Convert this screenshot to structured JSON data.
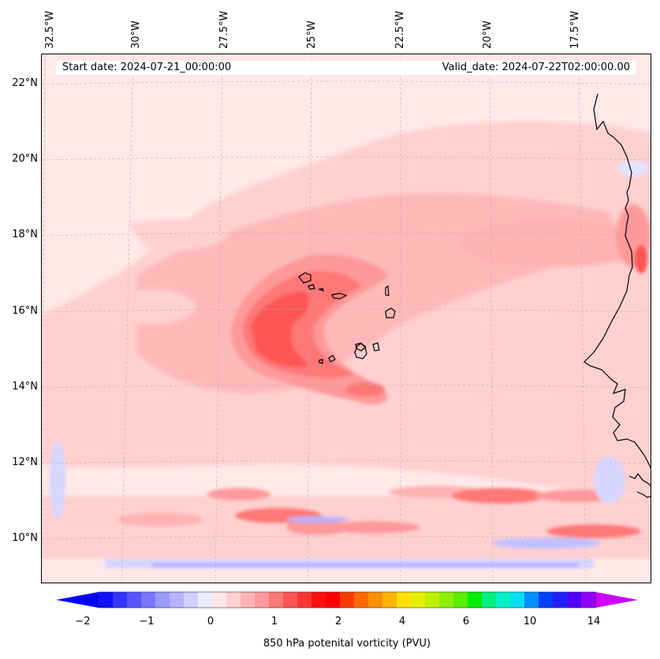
{
  "map": {
    "start_date": "Start date: 2024-07-21_00:00:00",
    "valid_date": "Valid_date: 2024-07-22T02:00:00.00",
    "lon_labels": [
      "32.5°W",
      "30°W",
      "27.5°W",
      "25°W",
      "22.5°W",
      "20°W",
      "17.5°W"
    ],
    "lat_labels": [
      "22°N",
      "20°N",
      "18°N",
      "16°N",
      "14°N",
      "12°N",
      "10°N"
    ],
    "colorbar": {
      "label": "850 hPa potenital vorticity (PVU)",
      "ticks": [
        "−2",
        "−1",
        "0",
        "1",
        "2",
        "4",
        "6",
        "10",
        "14"
      ],
      "colors": [
        "#1010ff",
        "#3535ff",
        "#5555ff",
        "#7777ff",
        "#9999ff",
        "#b3b3ff",
        "#d0d0ff",
        "#ececff",
        "#ffe8e8",
        "#ffd0d0",
        "#ffb3b3",
        "#ff9999",
        "#ff7777",
        "#ff5555",
        "#ff3535",
        "#ff1010",
        "#ff0000",
        "#ff3a00",
        "#ff6a00",
        "#ff9000",
        "#ffb400",
        "#ffe000",
        "#e5f000",
        "#c0f000",
        "#8cf000",
        "#5aee00",
        "#00ee00",
        "#00f080",
        "#00f0c8",
        "#00e0f0",
        "#0090ff",
        "#0040ff",
        "#2020ff",
        "#5000ff",
        "#9000ff"
      ],
      "extend_low_color": "#0000ff",
      "extend_high_color": "#cc00ff"
    }
  }
}
